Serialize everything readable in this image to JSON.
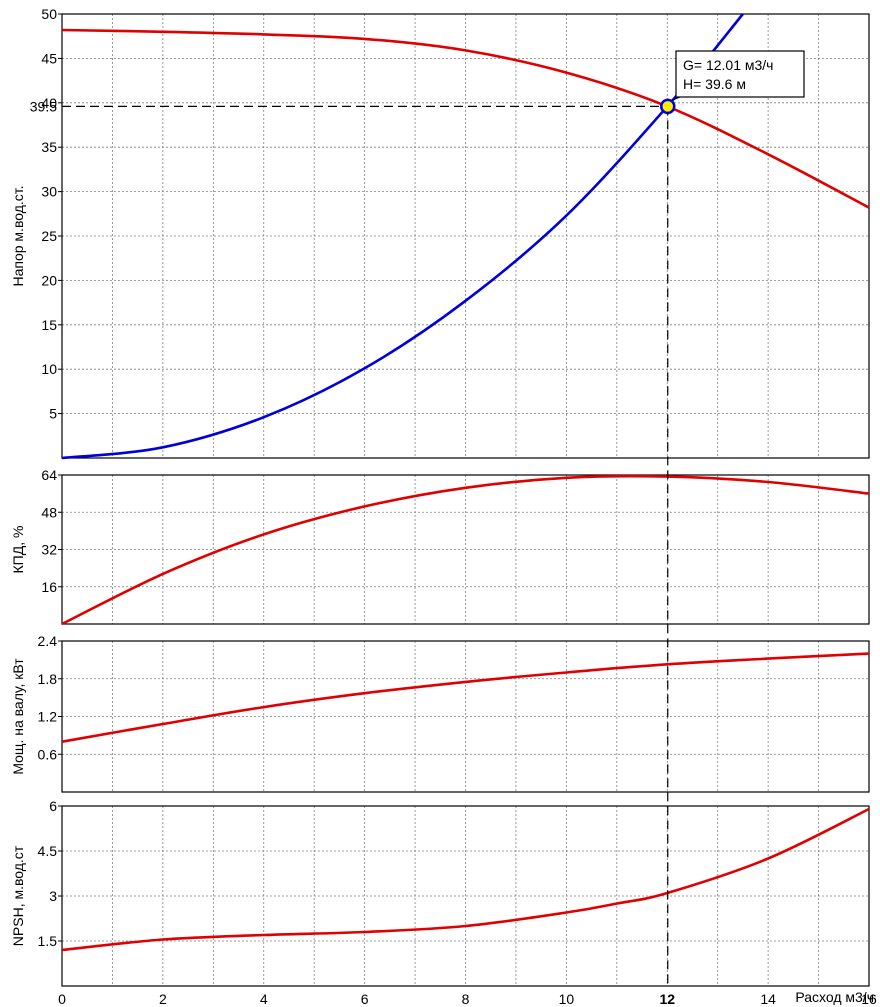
{
  "chart_data": [
    {
      "type": "line",
      "panel": "head",
      "ylabel": "Напор м.вод.ст.",
      "xlim": [
        0,
        16
      ],
      "ylim": [
        0,
        50
      ],
      "yticks": [
        5,
        10,
        15,
        20,
        25,
        30,
        35,
        40,
        45,
        50
      ],
      "grid": true,
      "series": [
        {
          "color": "#e00000",
          "x": [
            0,
            2,
            4,
            6,
            8,
            10,
            12,
            14,
            16
          ],
          "y": [
            48.2,
            48.0,
            47.7,
            47.2,
            45.9,
            43.4,
            39.6,
            34.2,
            28.2
          ]
        },
        {
          "color": "#0000dd",
          "x": [
            0,
            2,
            4,
            6,
            8,
            10,
            12,
            13.5
          ],
          "y": [
            0,
            1.2,
            4.6,
            10.1,
            17.7,
            27.3,
            39.6,
            50.0
          ]
        }
      ],
      "reference_ytick": "39.5"
    },
    {
      "type": "line",
      "panel": "efficiency",
      "ylabel": "КПД, %",
      "xlim": [
        0,
        16
      ],
      "ylim": [
        0,
        64
      ],
      "yticks": [
        16,
        32,
        48,
        64
      ],
      "grid": true,
      "series": [
        {
          "color": "#e00000",
          "x": [
            0,
            2,
            4,
            6,
            8,
            10,
            12,
            14,
            16
          ],
          "y": [
            0,
            21.5,
            38.5,
            50.5,
            58.5,
            62.8,
            63.3,
            61.0,
            56.0
          ]
        }
      ]
    },
    {
      "type": "line",
      "panel": "power",
      "ylabel": "Мощ. на валу, кВт",
      "xlim": [
        0,
        16
      ],
      "ylim": [
        0,
        2.4
      ],
      "yticks": [
        0.6,
        1.2,
        1.8,
        2.4
      ],
      "grid": true,
      "series": [
        {
          "color": "#e00000",
          "x": [
            0,
            2,
            4,
            6,
            8,
            10,
            12,
            14,
            16
          ],
          "y": [
            0.8,
            1.08,
            1.35,
            1.57,
            1.75,
            1.9,
            2.03,
            2.12,
            2.2
          ]
        }
      ]
    },
    {
      "type": "line",
      "panel": "npsh",
      "ylabel": "NPSH, м.вод.ст",
      "xlabel": "Расход м3/ч",
      "xlim": [
        0,
        16
      ],
      "ylim": [
        0,
        6
      ],
      "yticks": [
        1.5,
        3,
        4.5,
        6
      ],
      "grid": true,
      "series": [
        {
          "color": "#e00000",
          "x": [
            0,
            2,
            4,
            6,
            8,
            10,
            11,
            12,
            14,
            16
          ],
          "y": [
            1.2,
            1.55,
            1.7,
            1.8,
            2.0,
            2.45,
            2.75,
            3.1,
            4.25,
            5.9
          ]
        }
      ]
    }
  ],
  "x_axis": {
    "ticks": [
      0,
      2,
      4,
      6,
      8,
      10,
      12,
      14,
      16
    ],
    "highlighted_tick": 12,
    "label": "Расход м3/ч"
  },
  "operating_point": {
    "G": 12.01,
    "H": 39.6,
    "label_g": "G= 12.01 м3/ч",
    "label_h": "H= 39.6 м",
    "marker_fill": "#ffee00",
    "marker_stroke": "#0000dd"
  },
  "colors": {
    "pump_curve": "#e00000",
    "system_curve": "#0000dd",
    "grid": "#808080"
  }
}
